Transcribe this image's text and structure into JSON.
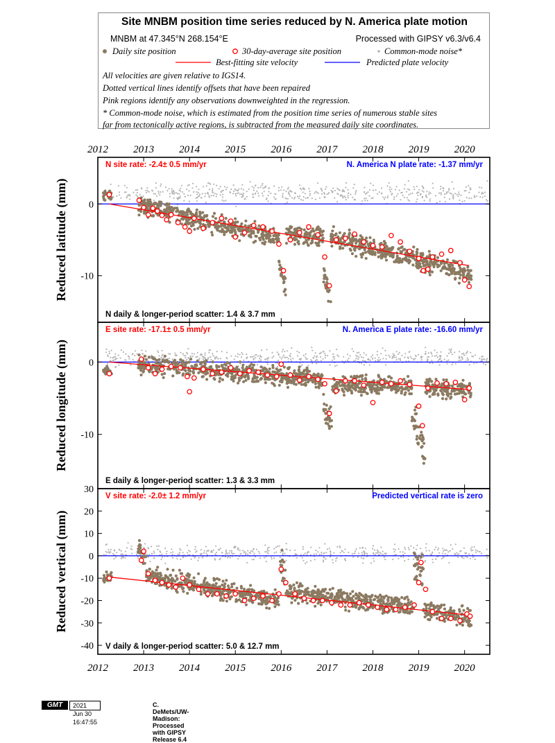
{
  "legend": {
    "title": "Site MNBM position time series reduced by N. America plate motion",
    "site_location": "MNBM at 47.345°N 268.154°E",
    "processing": "Processed with GIPSY v6.3/v6.4",
    "items": {
      "daily": "Daily site position",
      "avg30": "30-day-average site position",
      "cmn": "Common-mode noise*",
      "best_fit": "Best-fitting site velocity",
      "predicted": "Predicted plate velocity"
    },
    "notes": [
      "All velocities are given relative to IGS14.",
      "Dotted vertical lines identify offsets that have been repaired",
      "Pink regions identify any observations downweighted in the regression.",
      "* Common-mode noise, which is estimated from the position time series of numerous stable sites",
      "far from tectonically active regions, is subtracted from the measured daily site coordinates."
    ]
  },
  "colors": {
    "daily": "#8b7a61",
    "cmn": "#b4b4b4",
    "avg_marker": "#ff0000",
    "best_fit": "#ff0000",
    "predicted": "#0000ff",
    "site_rate_text": "#ff0000",
    "plate_rate_text": "#0000ff"
  },
  "footer": {
    "logo": "GMT",
    "timestamp": "2021 Jun 30 16:47:55",
    "credit": "C. DeMets/UW-Madison: Processed with GIPSY Release 6.4"
  },
  "chart_data": [
    {
      "type": "scatter",
      "component": "N",
      "ylabel": "Reduced latitude (mm)",
      "xlim": [
        2012.0,
        2020.55
      ],
      "ylim": [
        -16.5,
        6.5
      ],
      "xticks": [
        2012,
        2013,
        2014,
        2015,
        2016,
        2017,
        2018,
        2019,
        2020
      ],
      "yticks": [
        0,
        -10
      ],
      "site_rate": "N site rate:  -2.4± 0.5 mm/yr",
      "plate_rate": "N. America N plate rate: -1.37 mm/yr",
      "scatter": "N daily & longer-period scatter:   1.4 &   3.7 mm",
      "fit_line": {
        "x": [
          2012.25,
          2020.1
        ],
        "y": [
          0.0,
          -8.6
        ]
      },
      "predicted_line": {
        "x": [
          2012.0,
          2020.55
        ],
        "y": [
          0.0,
          0.0
        ]
      },
      "avg_30day": {
        "x": [
          2012.25,
          2012.9,
          2013.0,
          2013.1,
          2013.2,
          2013.3,
          2013.4,
          2013.5,
          2013.6,
          2013.75,
          2013.9,
          2014.0,
          2014.1,
          2014.3,
          2014.5,
          2014.7,
          2014.9,
          2015.0,
          2015.2,
          2015.4,
          2015.6,
          2015.8,
          2015.95,
          2016.05,
          2016.2,
          2016.4,
          2016.6,
          2016.8,
          2016.95,
          2017.05,
          2017.2,
          2017.4,
          2017.6,
          2017.8,
          2018.0,
          2018.2,
          2018.4,
          2018.6,
          2018.8,
          2019.0,
          2019.1,
          2019.2,
          2019.3,
          2019.5,
          2019.7,
          2019.9,
          2020.0,
          2020.1
        ],
        "y": [
          1.3,
          0.5,
          -0.5,
          -1.5,
          -0.6,
          -1.0,
          -1.6,
          -2.2,
          -1.5,
          -2.6,
          -3.2,
          -3.8,
          -2.0,
          -3.4,
          -2.6,
          -2.0,
          -2.4,
          -4.6,
          -4.0,
          -3.0,
          -3.2,
          -3.8,
          -5.6,
          -9.3,
          -5.0,
          -4.0,
          -3.2,
          -4.3,
          -7.4,
          -11.4,
          -5.0,
          -4.8,
          -4.2,
          -5.3,
          -5.8,
          -6.0,
          -4.4,
          -5.3,
          -6.6,
          -7.6,
          -9.3,
          -9.1,
          -7.4,
          -7.0,
          -6.5,
          -8.2,
          -10.6,
          -11.5
        ]
      },
      "daily_segments": [
        {
          "x0": 2012.12,
          "x1": 2012.3,
          "base": 1.2,
          "spread": 1.0
        },
        {
          "x0": 2012.88,
          "x1": 2015.95,
          "start": -0.2,
          "end": -4.8,
          "spread": 1.9
        },
        {
          "x0": 2015.95,
          "x1": 2016.1,
          "start": -8.5,
          "end": -12.0,
          "spread": 2.0
        },
        {
          "x0": 2016.1,
          "x1": 2016.92,
          "start": -4.2,
          "end": -4.6,
          "spread": 1.9
        },
        {
          "x0": 2016.92,
          "x1": 2017.08,
          "start": -10.0,
          "end": -13.0,
          "spread": 2.2
        },
        {
          "x0": 2017.08,
          "x1": 2020.15,
          "start": -4.6,
          "end": -9.8,
          "spread": 2.0
        }
      ],
      "cmn_noise": {
        "x0": 2012.12,
        "x1": 2020.5,
        "center": 1.5,
        "spread": 2.0
      }
    },
    {
      "type": "scatter",
      "component": "E",
      "ylabel": "Reduced longitude (mm)",
      "xlim": [
        2012.0,
        2020.55
      ],
      "ylim": [
        -17.5,
        5.5
      ],
      "xticks": [
        2012,
        2013,
        2014,
        2015,
        2016,
        2017,
        2018,
        2019,
        2020
      ],
      "yticks": [
        0,
        -10
      ],
      "site_rate": "E site rate: -17.1± 0.5 mm/yr",
      "plate_rate": "N. America E plate rate: -16.60 mm/yr",
      "scatter": "E daily & longer-period scatter:   1.3 &   3.3 mm",
      "fit_line": {
        "x": [
          2012.25,
          2020.1
        ],
        "y": [
          0.0,
          -3.8
        ]
      },
      "predicted_line": {
        "x": [
          2012.0,
          2020.55
        ],
        "y": [
          0.0,
          0.0
        ]
      },
      "avg_30day": {
        "x": [
          2012.25,
          2012.95,
          2013.1,
          2013.25,
          2013.4,
          2013.6,
          2013.8,
          2013.95,
          2014.0,
          2014.1,
          2014.3,
          2014.5,
          2014.7,
          2014.9,
          2015.1,
          2015.3,
          2015.5,
          2015.7,
          2015.9,
          2016.0,
          2016.2,
          2016.4,
          2016.6,
          2016.8,
          2016.95,
          2017.05,
          2017.2,
          2017.4,
          2017.6,
          2017.8,
          2018.0,
          2018.2,
          2018.4,
          2018.6,
          2018.8,
          2019.0,
          2019.08,
          2019.2,
          2019.4,
          2019.6,
          2019.8,
          2020.0,
          2020.1
        ],
        "y": [
          -1.6,
          0.4,
          -0.8,
          -1.6,
          -1.0,
          -0.6,
          -0.8,
          -2.0,
          -4.1,
          -2.2,
          -1.0,
          -1.6,
          -1.4,
          -0.8,
          -1.6,
          -1.2,
          -1.4,
          -1.8,
          -2.0,
          -0.3,
          -1.8,
          -2.5,
          -2.0,
          -2.4,
          -3.0,
          -7.1,
          -4.0,
          -2.6,
          -2.6,
          -3.2,
          -5.6,
          -2.8,
          -3.0,
          -2.6,
          -3.1,
          -6.1,
          -8.8,
          -3.6,
          -2.9,
          -3.0,
          -2.8,
          -5.2,
          -3.6
        ]
      },
      "daily_segments": [
        {
          "x0": 2012.12,
          "x1": 2012.3,
          "base": -1.2,
          "spread": 0.8
        },
        {
          "x0": 2012.88,
          "x1": 2016.92,
          "start": -0.3,
          "end": -2.4,
          "spread": 1.8
        },
        {
          "x0": 2016.92,
          "x1": 2017.1,
          "start": -6.5,
          "end": -8.5,
          "spread": 2.5
        },
        {
          "x0": 2017.1,
          "x1": 2018.85,
          "start": -3.0,
          "end": -3.4,
          "spread": 1.7
        },
        {
          "x0": 2018.85,
          "x1": 2019.15,
          "start": -7.0,
          "end": -12.5,
          "spread": 3.0
        },
        {
          "x0": 2019.15,
          "x1": 2020.15,
          "start": -3.4,
          "end": -3.8,
          "spread": 1.8
        }
      ],
      "cmn_noise": {
        "x0": 2012.12,
        "x1": 2020.5,
        "center": 0.6,
        "spread": 1.6
      }
    },
    {
      "type": "scatter",
      "component": "V",
      "ylabel": "Reduced vertical (mm)",
      "xlim": [
        2012.0,
        2020.55
      ],
      "ylim": [
        -44,
        30
      ],
      "xticks": [
        2012,
        2013,
        2014,
        2015,
        2016,
        2017,
        2018,
        2019,
        2020
      ],
      "yticks": [
        30,
        20,
        10,
        0,
        -10,
        -20,
        -30,
        -40
      ],
      "site_rate": "V site rate:  -2.0± 1.2 mm/yr",
      "plate_rate": "Predicted vertical rate is zero",
      "scatter": "V daily & longer-period scatter:   5.0 &  12.7 mm",
      "fit_line": {
        "x": [
          2012.25,
          2020.1
        ],
        "y": [
          -9.5,
          -26.5
        ]
      },
      "predicted_line": {
        "x": [
          2012.0,
          2020.55
        ],
        "y": [
          0.0,
          0.0
        ]
      },
      "avg_30day": {
        "x": [
          2012.25,
          2012.95,
          2013.0,
          2013.1,
          2013.25,
          2013.4,
          2013.55,
          2013.7,
          2013.85,
          2014.0,
          2014.2,
          2014.4,
          2014.6,
          2014.8,
          2015.0,
          2015.2,
          2015.4,
          2015.6,
          2015.8,
          2015.95,
          2016.0,
          2016.1,
          2016.3,
          2016.5,
          2016.7,
          2016.9,
          2017.1,
          2017.3,
          2017.5,
          2017.7,
          2017.9,
          2018.1,
          2018.3,
          2018.5,
          2018.7,
          2018.9,
          2019.0,
          2019.05,
          2019.15,
          2019.3,
          2019.5,
          2019.7,
          2019.9,
          2020.05,
          2020.12
        ],
        "y": [
          -10,
          -2,
          2,
          -8,
          -11,
          -12,
          -13,
          -14,
          -10,
          -13,
          -15,
          -17,
          -17,
          -18,
          -17,
          -20,
          -19,
          -18,
          -20,
          -17,
          -6,
          -12,
          -17,
          -19,
          -20,
          -20,
          -21,
          -22,
          -22,
          -21,
          -22,
          -23,
          -24,
          -24,
          -23,
          -22,
          -12,
          -3,
          -15,
          -25,
          -28,
          -28,
          -29,
          -26,
          -27
        ]
      },
      "daily_segments": [
        {
          "x0": 2012.12,
          "x1": 2012.3,
          "base": -10,
          "spread": 4
        },
        {
          "x0": 2012.88,
          "x1": 2013.05,
          "start": 4,
          "end": -2,
          "spread": 8
        },
        {
          "x0": 2013.05,
          "x1": 2015.95,
          "start": -9,
          "end": -20,
          "spread": 6
        },
        {
          "x0": 2015.95,
          "x1": 2016.1,
          "start": -4,
          "end": -8,
          "spread": 10
        },
        {
          "x0": 2016.1,
          "x1": 2018.9,
          "start": -16,
          "end": -23,
          "spread": 6
        },
        {
          "x0": 2018.9,
          "x1": 2019.1,
          "start": -4,
          "end": -8,
          "spread": 10
        },
        {
          "x0": 2019.1,
          "x1": 2020.15,
          "start": -24,
          "end": -28,
          "spread": 6
        }
      ],
      "cmn_noise": {
        "x0": 2012.12,
        "x1": 2020.5,
        "center": 1.0,
        "spread": 5.5
      }
    }
  ]
}
